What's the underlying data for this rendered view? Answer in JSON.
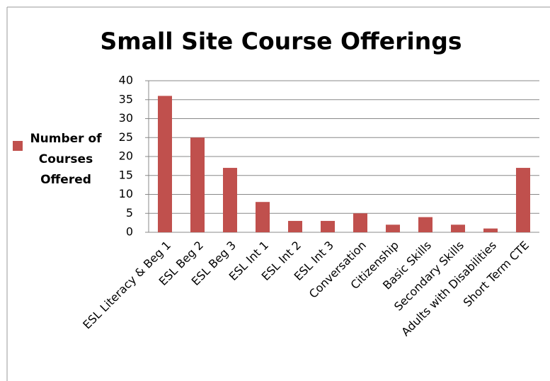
{
  "chart_data": {
    "type": "bar",
    "title": "Small Site Course Offerings",
    "categories": [
      "ESL Literacy & Beg 1",
      "ESL Beg 2",
      "ESL Beg 3",
      "ESL Int 1",
      "ESL Int 2",
      "ESL Int 3",
      "Conversation",
      "Citizenship",
      "Basic Skills",
      "Secondary Skills",
      "Adults with Disabilities",
      "Short Term CTE"
    ],
    "series": [
      {
        "name": "Number of Courses Offered",
        "color": "#c0504d",
        "values": [
          36,
          25,
          17,
          8,
          3,
          3,
          5,
          2,
          4,
          2,
          1,
          17
        ]
      }
    ],
    "ylim": [
      0,
      40
    ],
    "yticks": [
      0,
      5,
      10,
      15,
      20,
      25,
      30,
      35,
      40
    ],
    "grid": true,
    "legend": "left"
  }
}
